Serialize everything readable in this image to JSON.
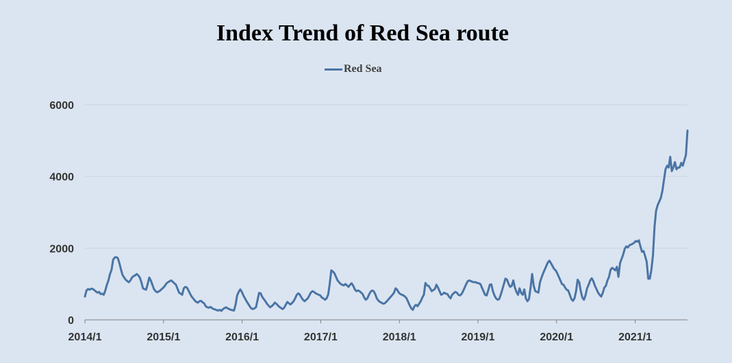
{
  "chart_data": {
    "type": "line",
    "title": "Index Trend of Red Sea route",
    "xlabel": "",
    "ylabel": "",
    "ylim": [
      0,
      6000
    ],
    "yticks": [
      0,
      2000,
      4000,
      6000
    ],
    "xticks": [
      "2014/1",
      "2015/1",
      "2016/1",
      "2017/1",
      "2018/1",
      "2019/1",
      "2020/1",
      "2021/1"
    ],
    "grid": true,
    "legend": "top-center",
    "colors": {
      "series": "#4a74a5",
      "grid": "#c9d4e3",
      "axis": "#7f7f7f",
      "background": "#dbe5f1"
    },
    "series": [
      {
        "name": "Red Sea",
        "x_start": "2014/1",
        "frequency": "weekly",
        "values": [
          650,
          820,
          860,
          840,
          870,
          860,
          830,
          790,
          760,
          780,
          720,
          730,
          700,
          820,
          980,
          1100,
          1280,
          1400,
          1680,
          1740,
          1750,
          1720,
          1580,
          1400,
          1250,
          1180,
          1120,
          1080,
          1050,
          1100,
          1180,
          1220,
          1240,
          1280,
          1240,
          1180,
          1050,
          880,
          860,
          840,
          1000,
          1180,
          1100,
          980,
          860,
          800,
          770,
          790,
          820,
          860,
          900,
          950,
          1020,
          1050,
          1080,
          1100,
          1060,
          1020,
          980,
          870,
          760,
          730,
          700,
          880,
          920,
          900,
          820,
          730,
          650,
          600,
          540,
          500,
          480,
          520,
          530,
          490,
          460,
          380,
          350,
          340,
          360,
          330,
          300,
          290,
          270,
          260,
          280,
          250,
          300,
          330,
          350,
          320,
          300,
          280,
          270,
          260,
          420,
          680,
          780,
          850,
          780,
          680,
          600,
          520,
          450,
          380,
          320,
          300,
          320,
          350,
          550,
          750,
          740,
          640,
          580,
          520,
          450,
          400,
          350,
          380,
          420,
          480,
          450,
          400,
          360,
          330,
          300,
          340,
          420,
          500,
          460,
          430,
          470,
          520,
          600,
          700,
          740,
          700,
          620,
          560,
          520,
          560,
          600,
          680,
          760,
          800,
          780,
          740,
          720,
          700,
          680,
          620,
          600,
          560,
          600,
          700,
          1000,
          1380,
          1350,
          1300,
          1200,
          1100,
          1050,
          1000,
          980,
          960,
          1000,
          960,
          920,
          980,
          1020,
          950,
          850,
          800,
          820,
          800,
          760,
          720,
          620,
          560,
          600,
          700,
          780,
          820,
          800,
          720,
          600,
          540,
          500,
          480,
          450,
          460,
          500,
          550,
          600,
          650,
          700,
          760,
          880,
          840,
          760,
          720,
          700,
          680,
          650,
          600,
          500,
          400,
          320,
          280,
          380,
          420,
          380,
          450,
          520,
          620,
          700,
          1030,
          960,
          950,
          880,
          800,
          830,
          860,
          980,
          900,
          800,
          700,
          720,
          760,
          730,
          720,
          650,
          600,
          700,
          740,
          780,
          760,
          700,
          680,
          720,
          800,
          900,
          1000,
          1080,
          1100,
          1080,
          1060,
          1050,
          1050,
          1030,
          1020,
          1000,
          900,
          800,
          700,
          680,
          820,
          980,
          990,
          800,
          680,
          600,
          560,
          580,
          700,
          850,
          1000,
          1150,
          1120,
          1000,
          920,
          950,
          1100,
          900,
          780,
          700,
          880,
          750,
          700,
          850,
          600,
          520,
          580,
          900,
          1280,
          950,
          800,
          780,
          760,
          1050,
          1180,
          1300,
          1400,
          1500,
          1600,
          1650,
          1580,
          1500,
          1420,
          1380,
          1300,
          1200,
          1100,
          1000,
          980,
          900,
          840,
          820,
          700,
          580,
          530,
          600,
          800,
          1120,
          1050,
          800,
          620,
          560,
          680,
          880,
          980,
          1100,
          1160,
          1080,
          950,
          860,
          760,
          700,
          650,
          750,
          900,
          950,
          1100,
          1200,
          1400,
          1450,
          1420,
          1380,
          1480,
          1200,
          1580,
          1700,
          1820,
          1980,
          2050,
          2020,
          2080,
          2100,
          2120,
          2150,
          2200,
          2180,
          2220,
          2050,
          1900,
          1920,
          1780,
          1620,
          1150,
          1150,
          1400,
          1800,
          2600,
          3050,
          3200,
          3300,
          3400,
          3600,
          3900,
          4200,
          4300,
          4250,
          4550,
          4150,
          4250,
          4400,
          4200,
          4250,
          4250,
          4380,
          4300,
          4450,
          4600,
          5280
        ]
      }
    ]
  }
}
